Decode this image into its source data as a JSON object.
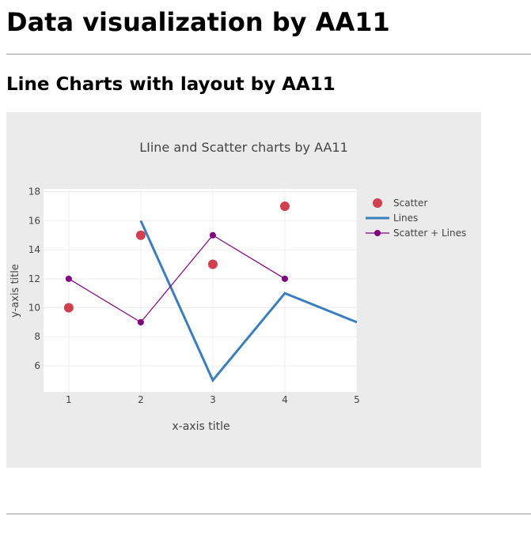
{
  "page": {
    "heading": "Data visualization by AA11",
    "section_heading": "Line Charts with layout by AA11"
  },
  "colors": {
    "plot_background": "#ffffff",
    "paper_background": "#ebebeb",
    "scatter": "#d1404e",
    "lines": "#3a7ebf",
    "scatter_lines": "#800080"
  },
  "chart_data": {
    "type": "line",
    "title": "LIine and Scatter charts by AA11",
    "xlabel": "x-axis title",
    "ylabel": "y-axis title",
    "xlim": [
      0.65,
      5
    ],
    "ylim": [
      4.2,
      18.2
    ],
    "xticks": [
      1,
      2,
      3,
      4,
      5
    ],
    "yticks": [
      6,
      8,
      10,
      12,
      14,
      16,
      18
    ],
    "grid": true,
    "legend_position": "top-right",
    "series": [
      {
        "name": "Scatter",
        "mode": "markers",
        "x": [
          1,
          2,
          3,
          4
        ],
        "y": [
          10,
          15,
          13,
          17
        ]
      },
      {
        "name": "Lines",
        "mode": "lines",
        "x": [
          2,
          3,
          4,
          5
        ],
        "y": [
          16,
          5,
          11,
          9
        ]
      },
      {
        "name": "Scatter + Lines",
        "mode": "lines+markers",
        "x": [
          1,
          2,
          3,
          4
        ],
        "y": [
          12,
          9,
          15,
          12
        ]
      }
    ]
  }
}
